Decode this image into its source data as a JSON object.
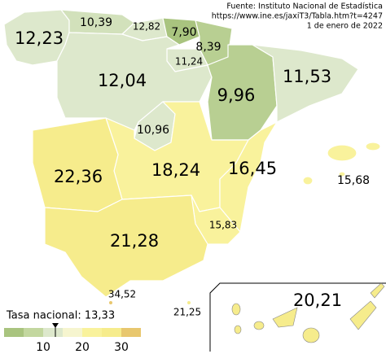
{
  "source": {
    "lines": [
      "Fuente: Instituto Nacional de Estadística",
      "https://www.ine.es/jaxiT3/Tabla.htm?t=4247",
      "1 de enero de 2022"
    ]
  },
  "regions": [
    {
      "label": "12,23"
    },
    {
      "label": "10,39"
    },
    {
      "label": "12,82"
    },
    {
      "label": "7,90"
    },
    {
      "label": "8,39"
    },
    {
      "label": "11,24"
    },
    {
      "label": "12,04"
    },
    {
      "label": "9,96"
    },
    {
      "label": "11,53"
    },
    {
      "label": "10,96"
    },
    {
      "label": "22,36"
    },
    {
      "label": "18,24"
    },
    {
      "label": "16,45"
    },
    {
      "label": "15,68"
    },
    {
      "label": "15,83"
    },
    {
      "label": "21,28"
    },
    {
      "label": "34,52"
    },
    {
      "label": "21,25"
    },
    {
      "label": "20,21"
    }
  ],
  "legend": {
    "title": "Tasa nacional: 13,33",
    "ticks": [
      "10",
      "20",
      "30"
    ]
  }
}
